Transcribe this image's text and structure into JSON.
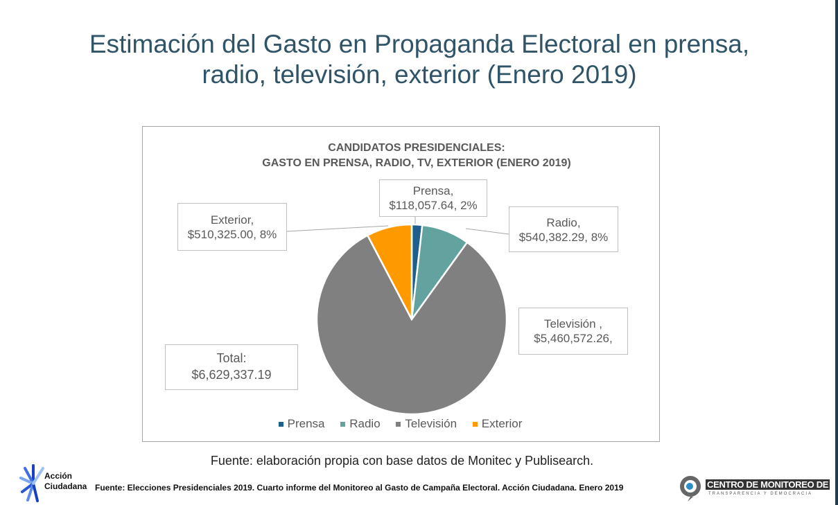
{
  "slide": {
    "title_line1": "Estimación del Gasto en Propaganda Electoral en prensa,",
    "title_line2": "radio, televisión, exterior (Enero 2019)",
    "source_main": "Fuente: elaboración propia con base datos de Monitec y Publisearch.",
    "source_footer": "Fuente: Elecciones Presidenciales 2019. Cuarto informe del Monitoreo al Gasto de Campaña Electoral. Acción Ciudadana. Enero 2019",
    "logo_left_line1": "Acción",
    "logo_left_line2": "Ciudadana",
    "logo_right_line1": "CENTRO DE MONITOREO DE",
    "logo_right_line2": "TRANSPARENCIA Y DEMOCRACIA"
  },
  "chart_data": {
    "type": "pie",
    "title_line1": "CANDIDATOS PRESIDENCIALES:",
    "title_line2": "GASTO EN PRENSA, RADIO, TV, EXTERIOR (ENERO 2019)",
    "categories": [
      "Prensa",
      "Radio",
      "Televisión",
      "Exterior"
    ],
    "values": [
      118057.64,
      540382.29,
      5460572.26,
      510325.0
    ],
    "colors": [
      "#1f5f8b",
      "#62a39f",
      "#808080",
      "#ff9900"
    ],
    "data_labels": [
      {
        "line1": "Prensa,",
        "line2": "$118,057.64, 2%"
      },
      {
        "line1": "Radio,",
        "line2": "$540,382.29, 8%"
      },
      {
        "line1": "Televisión ,",
        "line2": "$5,460,572.26,"
      },
      {
        "line1": "Exterior,",
        "line2": "$510,325.00, 8%"
      }
    ],
    "total_label": {
      "line1": "Total:",
      "line2": "$6,629,337.19"
    },
    "legend": [
      "Prensa",
      "Radio",
      "Televisión",
      "Exterior"
    ],
    "legend_position": "bottom"
  }
}
